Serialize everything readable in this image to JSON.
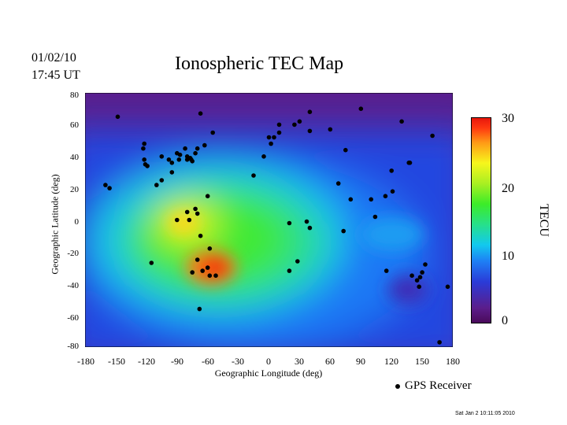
{
  "header": {
    "date": "01/02/10",
    "time": "17:45 UT",
    "footer_timestamp": "Sat Jan  2 10:11:05 2010"
  },
  "chart_data": {
    "type": "heatmap",
    "title": "Ionospheric TEC Map",
    "xlabel": "Geographic Longitude (deg)",
    "ylabel": "Geographic Latitude (deg)",
    "xlim": [
      -180,
      180
    ],
    "ylim": [
      -80,
      80
    ],
    "xticks": [
      "-180",
      "-150",
      "-120",
      "-90",
      "-60",
      "-30",
      "0",
      "30",
      "60",
      "90",
      "120",
      "150",
      "180"
    ],
    "yticks": [
      "80",
      "60",
      "40",
      "20",
      "0",
      "-20",
      "-40",
      "-60",
      "-80"
    ],
    "colorbar": {
      "label": "TECU",
      "ticks": [
        "30",
        "20",
        "10",
        "0"
      ],
      "range": [
        0,
        30
      ]
    },
    "legend": {
      "label": "GPS Receiver"
    },
    "tec_peaks": [
      {
        "lon": -62,
        "lat": -26,
        "tec": 30
      },
      {
        "lon": -90,
        "lat": 2,
        "tec": 25
      },
      {
        "lon": -30,
        "lat": -10,
        "tec": 18
      }
    ],
    "gps_receivers": [
      [
        -148,
        65
      ],
      [
        -160,
        22
      ],
      [
        -156,
        20
      ],
      [
        -122,
        48
      ],
      [
        -123,
        45
      ],
      [
        -122,
        38
      ],
      [
        -121,
        35
      ],
      [
        -119,
        34
      ],
      [
        -105,
        40
      ],
      [
        -98,
        38
      ],
      [
        -95,
        30
      ],
      [
        -95,
        36
      ],
      [
        -90,
        42
      ],
      [
        -88,
        38
      ],
      [
        -87,
        41
      ],
      [
        -82,
        45
      ],
      [
        -80,
        40
      ],
      [
        -80,
        38
      ],
      [
        -77,
        39
      ],
      [
        -76,
        38
      ],
      [
        -75,
        37
      ],
      [
        -72,
        42
      ],
      [
        -70,
        45
      ],
      [
        -63,
        47
      ],
      [
        -67,
        67
      ],
      [
        -60,
        15
      ],
      [
        -55,
        55
      ],
      [
        -105,
        25
      ],
      [
        -110,
        22
      ],
      [
        -80,
        5
      ],
      [
        -78,
        0
      ],
      [
        -90,
        0
      ],
      [
        -72,
        7
      ],
      [
        -70,
        4
      ],
      [
        -67,
        -10
      ],
      [
        -58,
        -18
      ],
      [
        -70,
        -25
      ],
      [
        -60,
        -30
      ],
      [
        -65,
        -32
      ],
      [
        -75,
        -33
      ],
      [
        -52,
        -35
      ],
      [
        -58,
        -35
      ],
      [
        -115,
        -27
      ],
      [
        -68,
        -56
      ],
      [
        -15,
        28
      ],
      [
        -5,
        40
      ],
      [
        2,
        48
      ],
      [
        0,
        52
      ],
      [
        5,
        52
      ],
      [
        10,
        55
      ],
      [
        10,
        60
      ],
      [
        25,
        60
      ],
      [
        30,
        62
      ],
      [
        40,
        56
      ],
      [
        60,
        57
      ],
      [
        75,
        44
      ],
      [
        90,
        70
      ],
      [
        130,
        62
      ],
      [
        160,
        53
      ],
      [
        137,
        36
      ],
      [
        138,
        36
      ],
      [
        120,
        31
      ],
      [
        114,
        15
      ],
      [
        121,
        18
      ],
      [
        104,
        2
      ],
      [
        100,
        13
      ],
      [
        68,
        23
      ],
      [
        80,
        13
      ],
      [
        73,
        -7
      ],
      [
        20,
        -2
      ],
      [
        37,
        -1
      ],
      [
        40,
        -5
      ],
      [
        28,
        -26
      ],
      [
        20,
        -32
      ],
      [
        115,
        -32
      ],
      [
        140,
        -35
      ],
      [
        145,
        -38
      ],
      [
        148,
        -36
      ],
      [
        150,
        -33
      ],
      [
        147,
        -42
      ],
      [
        153,
        -28
      ],
      [
        175,
        -42
      ],
      [
        167,
        -77
      ],
      [
        40,
        68
      ]
    ]
  }
}
